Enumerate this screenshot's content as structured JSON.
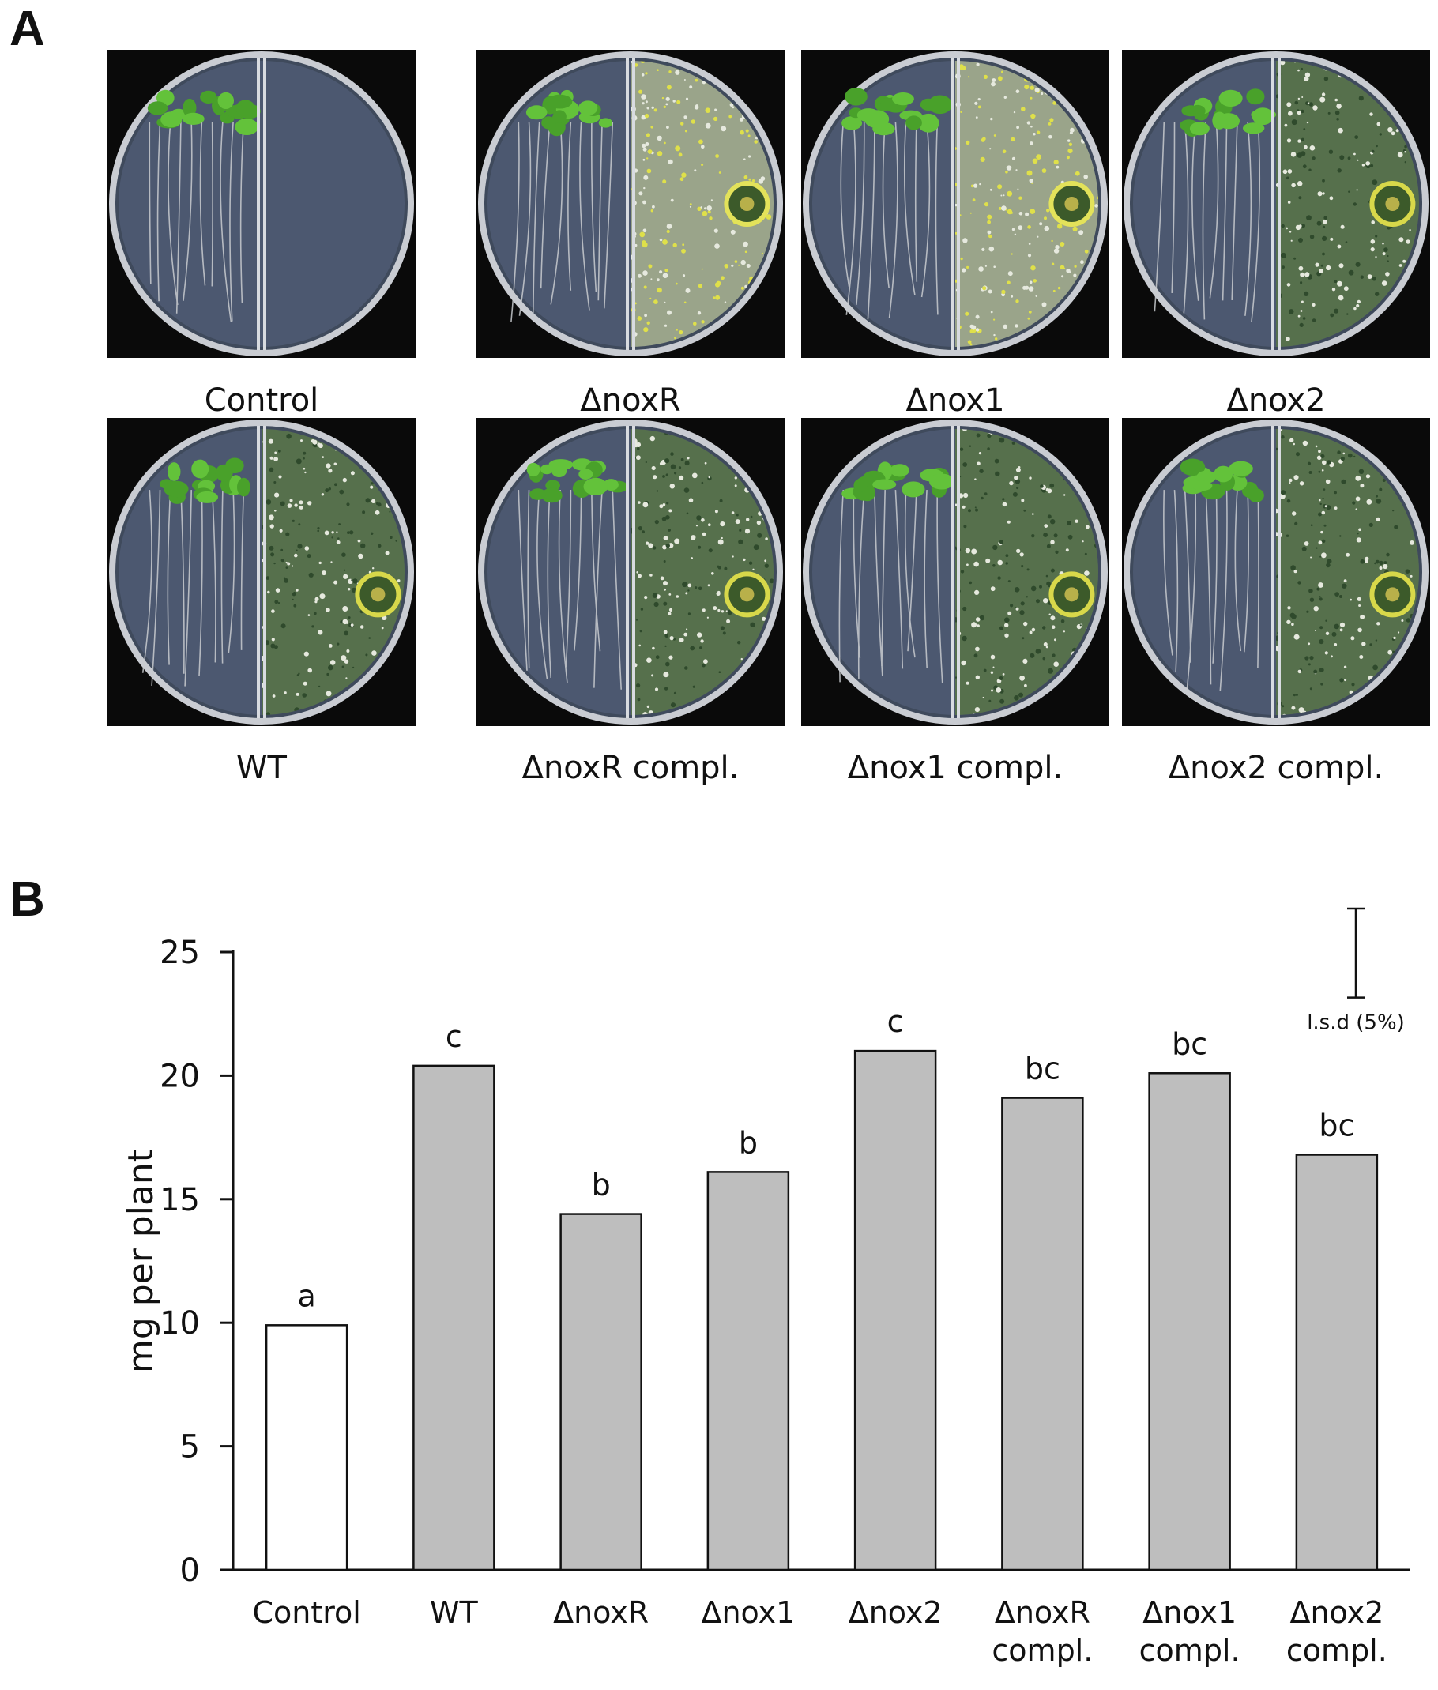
{
  "panel_a": {
    "letter": "A",
    "plates": [
      {
        "label": "Control",
        "treated": false,
        "colony": "none"
      },
      {
        "label": "ΔnoxR",
        "treated": true,
        "colony": "yellow"
      },
      {
        "label": "Δnox1",
        "treated": true,
        "colony": "yellow"
      },
      {
        "label": "Δnox2",
        "treated": true,
        "colony": "dark"
      },
      {
        "label": "WT",
        "treated": true,
        "colony": "dark"
      },
      {
        "label": "ΔnoxR  compl.",
        "treated": true,
        "colony": "dark"
      },
      {
        "label": "Δnox1 compl.",
        "treated": true,
        "colony": "dark"
      },
      {
        "label": "Δnox2 compl.",
        "treated": true,
        "colony": "dark"
      }
    ]
  },
  "panel_b": {
    "letter": "B"
  },
  "chart_data": {
    "type": "bar",
    "title": "",
    "xlabel": "",
    "ylabel": "mg per plant",
    "ylim": [
      0,
      25
    ],
    "yticks": [
      0,
      5,
      10,
      15,
      20,
      25
    ],
    "grid": false,
    "categories": [
      [
        "Control"
      ],
      [
        "WT"
      ],
      [
        "ΔnoxR"
      ],
      [
        "Δnox1"
      ],
      [
        "Δnox2"
      ],
      [
        "ΔnoxR",
        "compl."
      ],
      [
        "Δnox1",
        "compl."
      ],
      [
        "Δnox2",
        "compl."
      ]
    ],
    "values": [
      9.9,
      20.4,
      14.4,
      16.1,
      21.0,
      19.1,
      20.1,
      16.8
    ],
    "significance_letters": [
      "a",
      "c",
      "b",
      "b",
      "c",
      "bc",
      "bc",
      "bc"
    ],
    "bar_colors": [
      "#ffffff",
      "#bebebe",
      "#bebebe",
      "#bebebe",
      "#bebebe",
      "#bebebe",
      "#bebebe",
      "#bebebe"
    ],
    "lsd": {
      "label": "l.s.d (5%)",
      "value": 3.6
    }
  }
}
